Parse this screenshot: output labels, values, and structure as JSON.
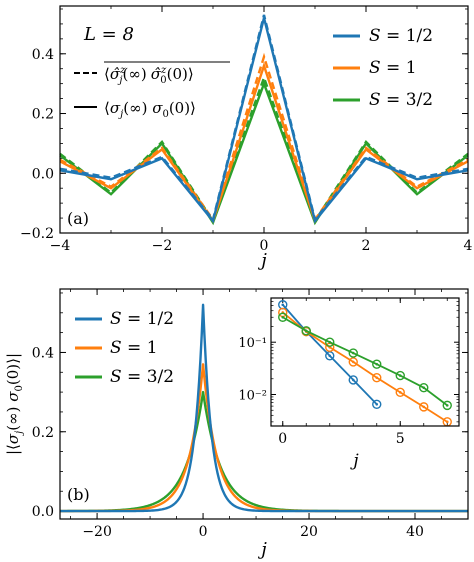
{
  "colors": {
    "s1": "#1f77b4",
    "s2": "#ff7f0e",
    "s3": "#2ca02c"
  },
  "chart_data": [
    {
      "type": "line",
      "panel_label": "(a)",
      "xlabel": "j",
      "ylabel": "",
      "xlim": [
        -4,
        4
      ],
      "ylim": [
        -0.2,
        0.56
      ],
      "xticks": [
        -4,
        -2,
        0,
        2,
        4
      ],
      "xtick_labels": [
        "−4",
        "−2",
        "0",
        "2",
        "4"
      ],
      "yticks": [
        -0.2,
        0.0,
        0.2,
        0.4
      ],
      "ytick_labels": [
        "−0.2",
        "0.0",
        "0.2",
        "0.4"
      ],
      "annotation": "L = 8",
      "style_legend": [
        {
          "label": "⟨σ̂ⱼᶻ(∞) σ̂₀ᶻ(0)⟩ (overlined)",
          "display": "⟨σ̂",
          "style": "dashed"
        },
        {
          "label": "⟨σj(∞) σ0(0)⟩",
          "style": "solid"
        }
      ],
      "legend": [
        "S = 1/2",
        "S = 1",
        "S = 3/2"
      ],
      "x": [
        -4,
        -3,
        -2,
        -1,
        0,
        1,
        2,
        3,
        4
      ],
      "series": [
        {
          "name": "S = 1/2",
          "color_key": "s1",
          "solid": [
            0.01,
            -0.02,
            0.05,
            -0.16,
            0.52,
            -0.16,
            0.05,
            -0.02,
            0.01
          ],
          "dashed": [
            0.015,
            -0.015,
            0.055,
            -0.155,
            0.53,
            -0.155,
            0.055,
            -0.015,
            0.015
          ]
        },
        {
          "name": "S = 1",
          "color_key": "s2",
          "solid": [
            0.04,
            -0.05,
            0.08,
            -0.16,
            0.36,
            -0.16,
            0.08,
            -0.05,
            0.04
          ],
          "dashed": [
            0.045,
            -0.045,
            0.085,
            -0.155,
            0.39,
            -0.155,
            0.085,
            -0.045,
            0.045
          ]
        },
        {
          "name": "S = 3/2",
          "color_key": "s3",
          "solid": [
            0.06,
            -0.07,
            0.1,
            -0.165,
            0.3,
            -0.165,
            0.1,
            -0.07,
            0.06
          ],
          "dashed": [
            0.065,
            -0.065,
            0.105,
            -0.16,
            0.32,
            -0.16,
            0.105,
            -0.065,
            0.065
          ]
        }
      ]
    },
    {
      "type": "line",
      "panel_label": "(b)",
      "xlabel": "j",
      "ylabel": "|⟨σj(∞) σ0(0)⟩|",
      "xlim": [
        -27,
        50
      ],
      "ylim": [
        -0.02,
        0.56
      ],
      "xticks": [
        -20,
        0,
        20,
        40
      ],
      "xtick_labels": [
        "−20",
        "0",
        "20",
        "40"
      ],
      "yticks": [
        0.0,
        0.2,
        0.4
      ],
      "ytick_labels": [
        "0.0",
        "0.2",
        "0.4"
      ],
      "legend": [
        "S = 1/2",
        "S = 1",
        "S = 3/2"
      ],
      "series": [
        {
          "name": "S = 1/2",
          "color_key": "s1",
          "peak": 0.52,
          "decay": 0.62
        },
        {
          "name": "S = 1",
          "color_key": "s2",
          "peak": 0.37,
          "decay": 0.38
        },
        {
          "name": "S = 3/2",
          "color_key": "s3",
          "peak": 0.3,
          "decay": 0.3
        }
      ]
    },
    {
      "type": "scatter",
      "panel_label": "inset",
      "xlabel": "j",
      "xlim": [
        -0.5,
        7.5
      ],
      "yscale": "log",
      "ylim": [
        0.0025,
        0.7
      ],
      "xticks": [
        0,
        5
      ],
      "xtick_labels": [
        "0",
        "5"
      ],
      "yticks": [
        0.1,
        0.01
      ],
      "ytick_labels": [
        "10⁻¹",
        "10⁻²"
      ],
      "series": [
        {
          "name": "S = 1/2",
          "color_key": "s1",
          "x": [
            0,
            1,
            2,
            3,
            4
          ],
          "y": [
            0.52,
            0.16,
            0.055,
            0.019,
            0.0065
          ]
        },
        {
          "name": "S = 1",
          "color_key": "s2",
          "x": [
            0,
            1,
            2,
            3,
            4,
            5,
            6,
            7
          ],
          "y": [
            0.37,
            0.16,
            0.08,
            0.042,
            0.021,
            0.011,
            0.0058,
            0.003
          ]
        },
        {
          "name": "S = 3/2",
          "color_key": "s3",
          "x": [
            0,
            1,
            2,
            3,
            4,
            5,
            6,
            7
          ],
          "y": [
            0.3,
            0.165,
            0.1,
            0.062,
            0.038,
            0.023,
            0.0135,
            0.0062
          ]
        }
      ]
    }
  ]
}
